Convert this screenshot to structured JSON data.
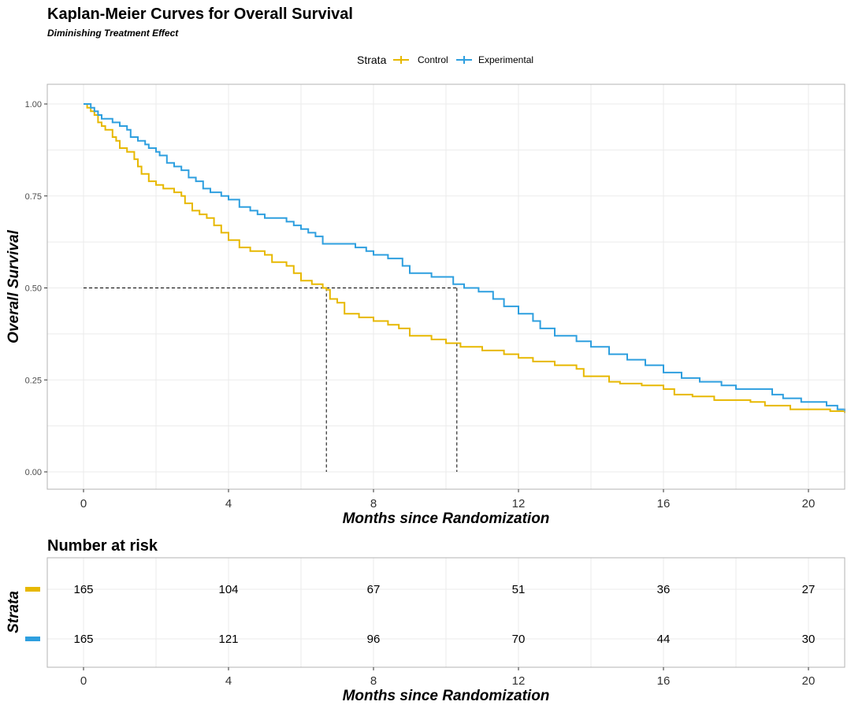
{
  "header": {
    "title": "Kaplan-Meier Curves for Overall Survival",
    "subtitle": "Diminishing Treatment Effect"
  },
  "chart_data": [
    {
      "type": "line",
      "subtype": "kaplan-meier",
      "xlabel": "Months since Randomization",
      "ylabel": "Overall Survival",
      "xlim": [
        0,
        21
      ],
      "ylim": [
        0,
        1
      ],
      "xticks": [
        0,
        4,
        8,
        12,
        16,
        20
      ],
      "xtick_labels": [
        "0",
        "4",
        "8",
        "12",
        "16",
        "20"
      ],
      "yticks": [
        0,
        0.25,
        0.5,
        0.75,
        1
      ],
      "ytick_labels": [
        "0.00",
        "0.25",
        "0.50",
        "0.75",
        "1.00"
      ],
      "grid": true,
      "legend": {
        "title": "Strata",
        "placement": "top",
        "entries": [
          "Control",
          "Experimental"
        ]
      },
      "median_survival": {
        "reference_y": 0.5,
        "Control": 6.7,
        "Experimental": 10.3
      },
      "series": [
        {
          "name": "Control",
          "color": "#E7B800",
          "x": [
            0,
            0.1,
            0.2,
            0.3,
            0.4,
            0.5,
            0.6,
            0.8,
            0.9,
            1.0,
            1.2,
            1.4,
            1.5,
            1.6,
            1.8,
            2.0,
            2.2,
            2.5,
            2.7,
            2.8,
            3.0,
            3.2,
            3.4,
            3.6,
            3.8,
            4.0,
            4.3,
            4.6,
            5.0,
            5.2,
            5.6,
            5.8,
            6.0,
            6.3,
            6.6,
            6.7,
            6.8,
            7.0,
            7.2,
            7.6,
            8.0,
            8.4,
            8.7,
            9.0,
            9.6,
            10.0,
            10.4,
            11.0,
            11.6,
            12.0,
            12.4,
            13.0,
            13.6,
            13.8,
            14.5,
            14.8,
            15.4,
            16.0,
            16.3,
            16.8,
            17.4,
            18.4,
            18.8,
            19.5,
            20.6,
            21.0
          ],
          "y": [
            1.0,
            0.99,
            0.98,
            0.97,
            0.95,
            0.94,
            0.93,
            0.91,
            0.9,
            0.88,
            0.87,
            0.85,
            0.83,
            0.81,
            0.79,
            0.78,
            0.77,
            0.76,
            0.75,
            0.73,
            0.71,
            0.7,
            0.69,
            0.67,
            0.65,
            0.63,
            0.61,
            0.6,
            0.59,
            0.57,
            0.56,
            0.54,
            0.52,
            0.51,
            0.5,
            0.495,
            0.47,
            0.46,
            0.43,
            0.42,
            0.41,
            0.4,
            0.39,
            0.37,
            0.36,
            0.35,
            0.34,
            0.33,
            0.32,
            0.31,
            0.3,
            0.29,
            0.28,
            0.26,
            0.245,
            0.24,
            0.235,
            0.225,
            0.21,
            0.205,
            0.195,
            0.19,
            0.18,
            0.17,
            0.165,
            0.16
          ]
        },
        {
          "name": "Experimental",
          "color": "#2E9FDF",
          "x": [
            0,
            0.2,
            0.3,
            0.4,
            0.5,
            0.8,
            1.0,
            1.2,
            1.3,
            1.5,
            1.7,
            1.8,
            2.0,
            2.1,
            2.3,
            2.5,
            2.7,
            2.9,
            3.1,
            3.3,
            3.5,
            3.8,
            4.0,
            4.3,
            4.6,
            4.8,
            5.0,
            5.6,
            5.8,
            6.0,
            6.2,
            6.4,
            6.6,
            7.0,
            7.5,
            7.8,
            8.0,
            8.4,
            8.8,
            9.0,
            9.6,
            10.2,
            10.5,
            10.9,
            11.3,
            11.6,
            12.0,
            12.4,
            12.6,
            13.0,
            13.6,
            14.0,
            14.5,
            15.0,
            15.5,
            16.0,
            16.5,
            17.0,
            17.6,
            18.0,
            19.0,
            19.3,
            19.8,
            20.5,
            20.8,
            21.0
          ],
          "y": [
            1.0,
            0.99,
            0.98,
            0.97,
            0.96,
            0.95,
            0.94,
            0.93,
            0.91,
            0.9,
            0.89,
            0.88,
            0.87,
            0.86,
            0.84,
            0.83,
            0.82,
            0.8,
            0.79,
            0.77,
            0.76,
            0.75,
            0.74,
            0.72,
            0.71,
            0.7,
            0.69,
            0.68,
            0.67,
            0.66,
            0.65,
            0.64,
            0.62,
            0.62,
            0.61,
            0.6,
            0.59,
            0.58,
            0.56,
            0.54,
            0.53,
            0.51,
            0.5,
            0.49,
            0.47,
            0.45,
            0.43,
            0.41,
            0.39,
            0.37,
            0.355,
            0.34,
            0.32,
            0.305,
            0.29,
            0.27,
            0.255,
            0.245,
            0.235,
            0.225,
            0.21,
            0.2,
            0.19,
            0.18,
            0.17,
            0.165
          ]
        }
      ]
    },
    {
      "type": "table",
      "title": "Number at risk",
      "ylabel": "Strata",
      "xlabel": "Months since Randomization",
      "x": [
        0,
        4,
        8,
        12,
        16,
        20
      ],
      "xtick_labels": [
        "0",
        "4",
        "8",
        "12",
        "16",
        "20"
      ],
      "rows": [
        {
          "strata": "Control",
          "color": "#E7B800",
          "values": [
            165,
            104,
            67,
            51,
            36,
            27
          ]
        },
        {
          "strata": "Experimental",
          "color": "#2E9FDF",
          "values": [
            165,
            121,
            96,
            70,
            44,
            30
          ]
        }
      ]
    }
  ]
}
